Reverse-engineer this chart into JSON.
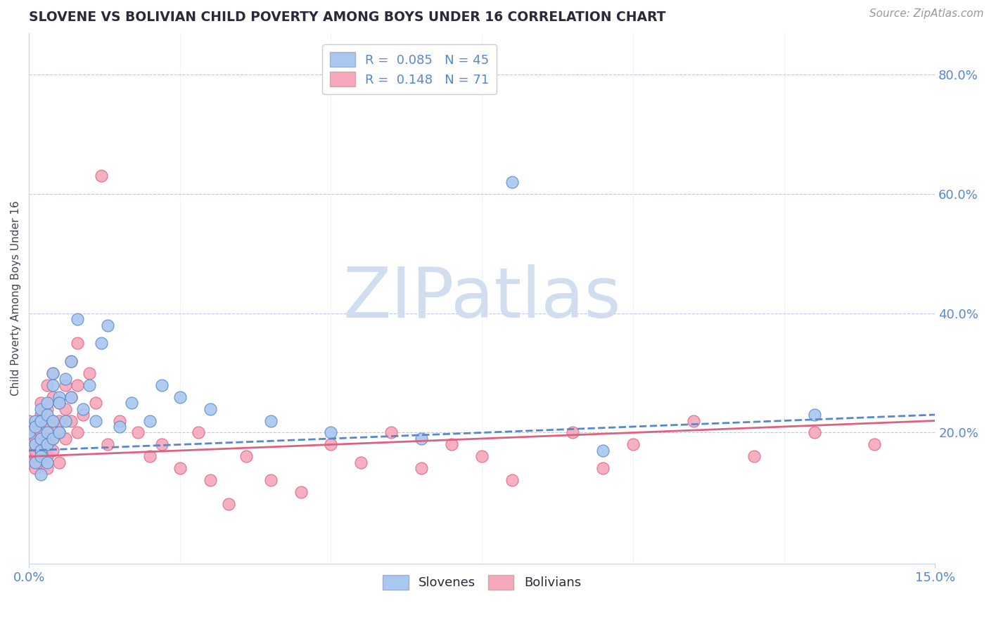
{
  "title": "SLOVENE VS BOLIVIAN CHILD POVERTY AMONG BOYS UNDER 16 CORRELATION CHART",
  "source": "Source: ZipAtlas.com",
  "ylabel": "Child Poverty Among Boys Under 16",
  "xlim": [
    0.0,
    0.15
  ],
  "ylim": [
    -0.02,
    0.87
  ],
  "yticks": [
    0.2,
    0.4,
    0.6,
    0.8
  ],
  "ytick_labels": [
    "20.0%",
    "40.0%",
    "60.0%",
    "80.0%"
  ],
  "xtick_labels": [
    "0.0%",
    "15.0%"
  ],
  "legend_r1": "R =  0.085",
  "legend_n1": "N = 45",
  "legend_r2": "R =  0.148",
  "legend_n2": "N = 71",
  "slovene_color": "#A8C8F0",
  "bolivian_color": "#F5A8BC",
  "slovene_line_color": "#5588CC",
  "bolivian_line_color": "#E06080",
  "watermark": "ZIPatlas",
  "watermark_color": "#D0DEF0",
  "background_color": "#FFFFFF",
  "title_color": "#2A2A3A",
  "axis_label_color": "#444455",
  "tick_label_color": "#5588CC",
  "grid_color": "#C0C8E0",
  "slovenes_x": [
    0.0,
    0.001,
    0.001,
    0.001,
    0.001,
    0.002,
    0.002,
    0.002,
    0.002,
    0.002,
    0.002,
    0.003,
    0.003,
    0.003,
    0.003,
    0.003,
    0.004,
    0.004,
    0.004,
    0.004,
    0.005,
    0.005,
    0.005,
    0.006,
    0.006,
    0.007,
    0.007,
    0.008,
    0.009,
    0.01,
    0.011,
    0.012,
    0.013,
    0.015,
    0.017,
    0.02,
    0.022,
    0.025,
    0.03,
    0.04,
    0.05,
    0.065,
    0.08,
    0.095,
    0.13
  ],
  "slovenes_y": [
    0.2,
    0.22,
    0.18,
    0.15,
    0.21,
    0.19,
    0.17,
    0.22,
    0.16,
    0.24,
    0.13,
    0.25,
    0.2,
    0.18,
    0.23,
    0.15,
    0.28,
    0.22,
    0.3,
    0.19,
    0.26,
    0.2,
    0.25,
    0.29,
    0.22,
    0.32,
    0.26,
    0.39,
    0.24,
    0.28,
    0.22,
    0.35,
    0.38,
    0.21,
    0.25,
    0.22,
    0.28,
    0.26,
    0.24,
    0.22,
    0.2,
    0.19,
    0.62,
    0.17,
    0.23
  ],
  "bolivians_x": [
    0.0,
    0.0,
    0.0,
    0.001,
    0.001,
    0.001,
    0.001,
    0.001,
    0.001,
    0.002,
    0.002,
    0.002,
    0.002,
    0.002,
    0.002,
    0.002,
    0.003,
    0.003,
    0.003,
    0.003,
    0.003,
    0.003,
    0.003,
    0.004,
    0.004,
    0.004,
    0.004,
    0.004,
    0.005,
    0.005,
    0.005,
    0.005,
    0.006,
    0.006,
    0.006,
    0.007,
    0.007,
    0.007,
    0.008,
    0.008,
    0.008,
    0.009,
    0.01,
    0.011,
    0.012,
    0.013,
    0.015,
    0.018,
    0.02,
    0.022,
    0.025,
    0.028,
    0.03,
    0.033,
    0.036,
    0.04,
    0.045,
    0.05,
    0.055,
    0.06,
    0.065,
    0.07,
    0.075,
    0.08,
    0.09,
    0.095,
    0.1,
    0.11,
    0.12,
    0.13,
    0.14
  ],
  "bolivians_y": [
    0.18,
    0.15,
    0.22,
    0.2,
    0.16,
    0.19,
    0.14,
    0.21,
    0.17,
    0.23,
    0.18,
    0.15,
    0.2,
    0.25,
    0.17,
    0.22,
    0.19,
    0.24,
    0.16,
    0.28,
    0.21,
    0.18,
    0.14,
    0.26,
    0.22,
    0.19,
    0.3,
    0.17,
    0.25,
    0.2,
    0.22,
    0.15,
    0.28,
    0.24,
    0.19,
    0.32,
    0.26,
    0.22,
    0.35,
    0.28,
    0.2,
    0.23,
    0.3,
    0.25,
    0.63,
    0.18,
    0.22,
    0.2,
    0.16,
    0.18,
    0.14,
    0.2,
    0.12,
    0.08,
    0.16,
    0.12,
    0.1,
    0.18,
    0.15,
    0.2,
    0.14,
    0.18,
    0.16,
    0.12,
    0.2,
    0.14,
    0.18,
    0.22,
    0.16,
    0.2,
    0.18
  ]
}
